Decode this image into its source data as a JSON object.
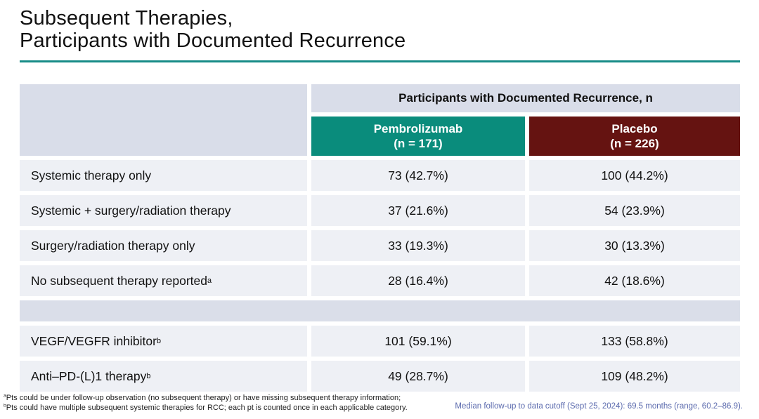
{
  "slide": {
    "title_line1": "Subsequent Therapies,",
    "title_line2": "Participants with Documented Recurrence"
  },
  "table": {
    "header_band": "Participants with Documented Recurrence, n",
    "columns": [
      {
        "name": "Pembrolizumab",
        "n": "(n = 171)"
      },
      {
        "name": "Placebo",
        "n": "(n = 226)"
      }
    ],
    "rows": [
      {
        "label": "Systemic therapy only",
        "sup": "",
        "pembrolizumab": "73 (42.7%)",
        "placebo": "100 (44.2%)"
      },
      {
        "label": "Systemic + surgery/radiation therapy",
        "sup": "",
        "pembrolizumab": "37 (21.6%)",
        "placebo": "54 (23.9%)"
      },
      {
        "label": "Surgery/radiation therapy only",
        "sup": "",
        "pembrolizumab": "33 (19.3%)",
        "placebo": "30 (13.3%)"
      },
      {
        "label": "No subsequent therapy reported",
        "sup": "a",
        "pembrolizumab": "28 (16.4%)",
        "placebo": "42 (18.6%)"
      }
    ],
    "rows2": [
      {
        "label": "VEGF/VEGFR inhibitor",
        "sup": "b",
        "pembrolizumab": "101 (59.1%)",
        "placebo": "133 (58.8%)"
      },
      {
        "label": "Anti–PD-(L)1 therapy",
        "sup": "b",
        "pembrolizumab": "49 (28.7%)",
        "placebo": "109 (48.2%)"
      }
    ]
  },
  "footnotes": {
    "left": [
      {
        "sup": "a",
        "text": "Pts could be under follow-up observation (no subsequent therapy) or have missing subsequent therapy information;"
      },
      {
        "sup": "b",
        "text": "Pts could have multiple subsequent systemic therapies for RCC; each pt is counted once in each applicable category."
      }
    ],
    "right": "Median follow-up to data cutoff (Sept 25, 2024): 69.5 months (range, 60.2–86.9)."
  },
  "colors": {
    "accent_teal": "#0A8C7C",
    "accent_maroon": "#651311",
    "title_rule_teal": "#178C87",
    "header_lavender": "#D9DDE9",
    "spacer_lavender": "#DADEE9",
    "row_background": "#EEF0F5",
    "footnote_blue": "#5C6BAE"
  }
}
